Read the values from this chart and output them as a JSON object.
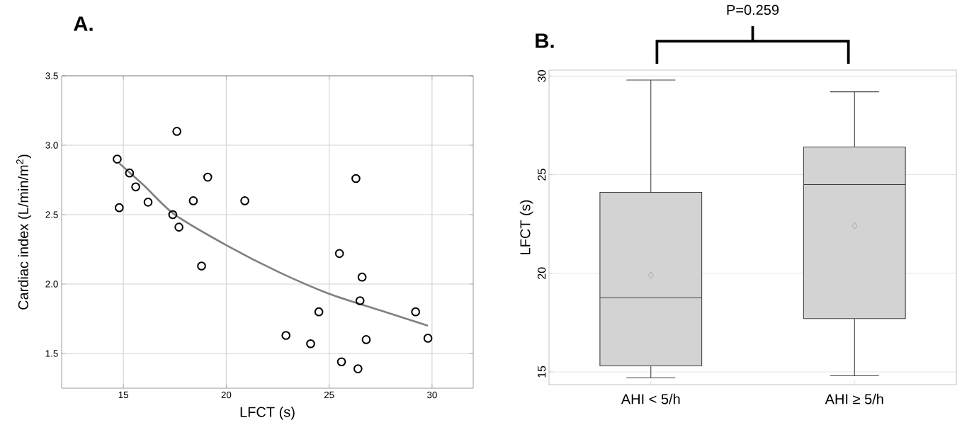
{
  "chart_data": [
    {
      "type": "scatter",
      "title": "A.",
      "xlabel": "LFCT (s)",
      "ylabel": "Cardiac index (L/min/m$^{2}$)",
      "xlim": [
        12,
        32
      ],
      "ylim": [
        1.25,
        3.5
      ],
      "xticks": [
        15,
        20,
        25,
        30
      ],
      "yticks": [
        1.5,
        {
          "value": 2,
          "label": "2.0"
        },
        2.5,
        {
          "value": 3,
          "label": "3.0"
        },
        3.5
      ],
      "grid": true,
      "series": [
        {
          "type": "scatter",
          "marker": "circle",
          "color": "#000000",
          "x": [
            14.7,
            14.8,
            15.3,
            15.6,
            16.2,
            17.4,
            17.6,
            17.7,
            18.4,
            18.8,
            19.1,
            20.9,
            22.9,
            24.1,
            24.5,
            25.5,
            25.6,
            26.3,
            26.4,
            26.5,
            26.6,
            26.8,
            29.2,
            29.8
          ],
          "values": [
            2.9,
            2.55,
            2.8,
            2.7,
            2.59,
            2.5,
            3.1,
            2.41,
            2.6,
            2.13,
            2.77,
            2.6,
            1.63,
            1.57,
            1.8,
            2.22,
            1.44,
            2.76,
            1.39,
            1.88,
            2.05,
            1.6,
            1.8,
            1.61
          ]
        },
        {
          "type": "line",
          "color": "#808080",
          "x": [
            14.8,
            16,
            17.5,
            20,
            22.5,
            25,
            27.5,
            29.8
          ],
          "values": [
            2.87,
            2.71,
            2.5,
            2.28,
            2.09,
            1.93,
            1.81,
            1.7
          ]
        }
      ]
    },
    {
      "type": "box",
      "title": "B.",
      "ylabel": "LFCT (s)",
      "categories": [
        "AHI < 5/h",
        "AHI ≥ 5/h"
      ],
      "ylim": [
        14.35,
        30.3
      ],
      "yticks": [
        15,
        20,
        25,
        30
      ],
      "grid": "y",
      "color": "#d3d3d3",
      "annotations": [
        "P=0.259"
      ],
      "boxes": [
        {
          "low": 14.7,
          "q1": 15.3,
          "median": 18.75,
          "q3": 24.1,
          "high": 29.8,
          "mean": 19.9
        },
        {
          "low": 14.8,
          "q1": 17.7,
          "median": 24.5,
          "q3": 26.4,
          "high": 29.2,
          "mean": 22.4
        }
      ]
    }
  ]
}
